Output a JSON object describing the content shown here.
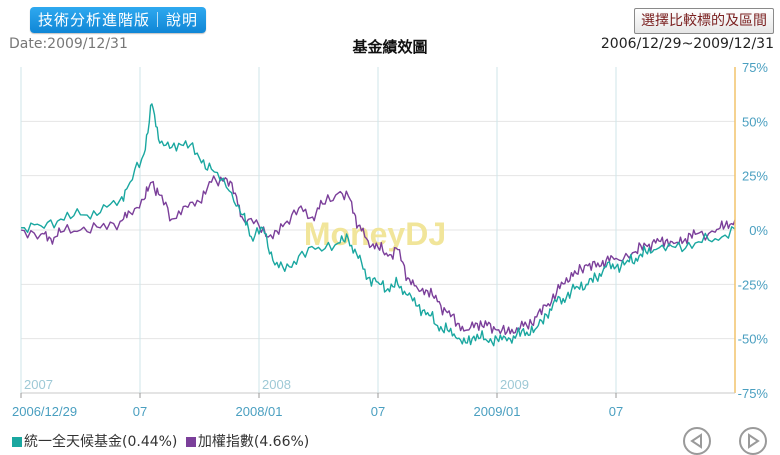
{
  "toolbar": {
    "analysis_button": "技術分析進階版｜說明",
    "compare_button": "選擇比較標的及區間"
  },
  "header": {
    "date": "Date:2009/12/31",
    "period": "2006/12/29~2009/12/31"
  },
  "chart_data": {
    "type": "line",
    "title": "基金績效圖",
    "watermark": "MoneyDJ",
    "ylim": [
      -75,
      75
    ],
    "y_ticks": [
      75,
      50,
      25,
      0,
      -25,
      -50,
      -75
    ],
    "y_tick_labels": [
      "75%",
      "50%",
      "25%",
      "0%",
      "-25%",
      "-50%",
      "-75%"
    ],
    "x_ticks": [
      {
        "label": "2006/12/29",
        "month": 0
      },
      {
        "label": "07",
        "month": 6
      },
      {
        "label": "2008/01",
        "month": 12
      },
      {
        "label": "07",
        "month": 18
      },
      {
        "label": "2009/01",
        "month": 24
      },
      {
        "label": "07",
        "month": 30
      }
    ],
    "year_labels": [
      {
        "label": "2007",
        "month": 0
      },
      {
        "label": "2008",
        "month": 12
      },
      {
        "label": "2009",
        "month": 24
      }
    ],
    "xlim": [
      0,
      36
    ],
    "series": [
      {
        "name": "統一全天候基金(0.44%)",
        "color": "#1aa7a0",
        "points": [
          [
            0,
            1
          ],
          [
            1,
            2
          ],
          [
            2,
            5
          ],
          [
            3,
            7
          ],
          [
            4,
            8
          ],
          [
            5,
            14
          ],
          [
            5.5,
            22
          ],
          [
            6.2,
            35
          ],
          [
            6.6,
            58
          ],
          [
            7,
            40
          ],
          [
            7.6,
            38
          ],
          [
            8.3,
            41
          ],
          [
            9,
            33
          ],
          [
            9.6,
            28
          ],
          [
            10.5,
            18
          ],
          [
            11.2,
            7
          ],
          [
            11.6,
            -3
          ],
          [
            12.2,
            1
          ],
          [
            12.7,
            -14
          ],
          [
            13.3,
            -19
          ],
          [
            14,
            -12
          ],
          [
            15,
            -8
          ],
          [
            16,
            -6
          ],
          [
            16.5,
            -4
          ],
          [
            17,
            -13
          ],
          [
            17.5,
            -22
          ],
          [
            18,
            -24
          ],
          [
            18.5,
            -27
          ],
          [
            19,
            -25
          ],
          [
            19.5,
            -30
          ],
          [
            20,
            -35
          ],
          [
            20.5,
            -38
          ],
          [
            21,
            -44
          ],
          [
            21.5,
            -46
          ],
          [
            22,
            -50
          ],
          [
            22.5,
            -52
          ],
          [
            23,
            -48
          ],
          [
            23.5,
            -51
          ],
          [
            24,
            -50
          ],
          [
            24.5,
            -51
          ],
          [
            25,
            -48
          ],
          [
            25.5,
            -47
          ],
          [
            26,
            -45
          ],
          [
            26.5,
            -39
          ],
          [
            27,
            -33
          ],
          [
            27.5,
            -31
          ],
          [
            28,
            -26
          ],
          [
            28.5,
            -25
          ],
          [
            29,
            -22
          ],
          [
            29.5,
            -17
          ],
          [
            30,
            -17
          ],
          [
            30.5,
            -15
          ],
          [
            31,
            -13
          ],
          [
            31.5,
            -10
          ],
          [
            32,
            -9
          ],
          [
            33,
            -8
          ],
          [
            34,
            -6
          ],
          [
            35,
            -4
          ],
          [
            36,
            0.44
          ]
        ]
      },
      {
        "name": "加權指數(4.66%)",
        "color": "#7b3f9a",
        "points": [
          [
            0,
            0
          ],
          [
            1,
            -2
          ],
          [
            1.5,
            -4
          ],
          [
            2,
            -1
          ],
          [
            3,
            0
          ],
          [
            4,
            1
          ],
          [
            5,
            4
          ],
          [
            5.5,
            8
          ],
          [
            6.2,
            14
          ],
          [
            6.6,
            22
          ],
          [
            7,
            16
          ],
          [
            7.6,
            5
          ],
          [
            8.3,
            11
          ],
          [
            9,
            13
          ],
          [
            9.6,
            22
          ],
          [
            10.3,
            24
          ],
          [
            10.8,
            17
          ],
          [
            11.2,
            5
          ],
          [
            12,
            2
          ],
          [
            12.7,
            -4
          ],
          [
            13.3,
            3
          ],
          [
            14,
            10
          ],
          [
            14.7,
            6
          ],
          [
            15.2,
            12
          ],
          [
            16,
            17
          ],
          [
            16.6,
            14
          ],
          [
            17,
            2
          ],
          [
            17.5,
            -5
          ],
          [
            18,
            -8
          ],
          [
            18.5,
            -12
          ],
          [
            19,
            -9
          ],
          [
            19.5,
            -22
          ],
          [
            20,
            -27
          ],
          [
            20.5,
            -28
          ],
          [
            21,
            -33
          ],
          [
            21.5,
            -38
          ],
          [
            22,
            -43
          ],
          [
            22.5,
            -46
          ],
          [
            23,
            -43
          ],
          [
            23.5,
            -44
          ],
          [
            24,
            -46
          ],
          [
            24.5,
            -47
          ],
          [
            25,
            -45
          ],
          [
            25.5,
            -44
          ],
          [
            26,
            -40
          ],
          [
            26.5,
            -35
          ],
          [
            27,
            -29
          ],
          [
            27.5,
            -22
          ],
          [
            28,
            -20
          ],
          [
            28.5,
            -16
          ],
          [
            29,
            -17
          ],
          [
            29.5,
            -14
          ],
          [
            30,
            -13
          ],
          [
            31,
            -10
          ],
          [
            31.5,
            -7
          ],
          [
            32,
            -6
          ],
          [
            32.5,
            -5
          ],
          [
            33,
            -6
          ],
          [
            33.5,
            -4
          ],
          [
            34,
            -2
          ],
          [
            35,
            -1
          ],
          [
            35.5,
            2
          ],
          [
            36,
            4.66
          ]
        ]
      }
    ]
  },
  "legend": {
    "fund_label": "統一全天候基金(0.44%)",
    "index_label": "加權指數(4.66%)",
    "fund_color": "#1aa7a0",
    "index_color": "#7b3f9a"
  },
  "nav": {
    "prev_icon": "prev-circle-icon",
    "next_icon": "next-circle-icon"
  }
}
